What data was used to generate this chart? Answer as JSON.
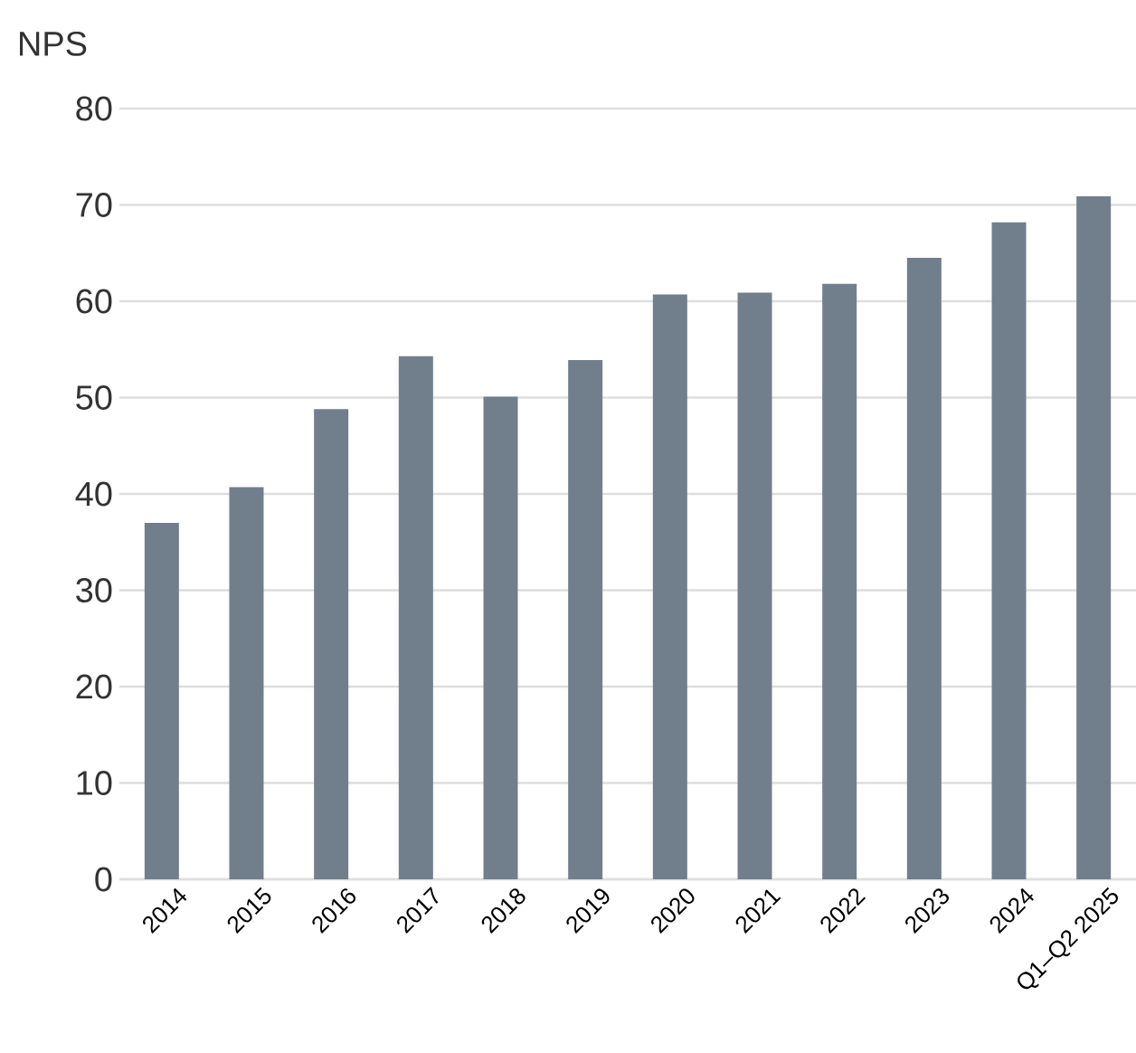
{
  "chart_data": {
    "type": "bar",
    "ylabel": "NPS",
    "categories": [
      "2014",
      "2015",
      "2016",
      "2017",
      "2018",
      "2019",
      "2020",
      "2021",
      "2022",
      "2023",
      "2024",
      "Q1–Q2 2025"
    ],
    "values": [
      37.0,
      40.7,
      48.8,
      54.3,
      50.1,
      53.9,
      60.7,
      60.9,
      61.8,
      64.5,
      68.2,
      70.9
    ],
    "color": "#717f8c",
    "ylim": [
      0,
      80
    ],
    "yticks": [
      0,
      10,
      20,
      30,
      40,
      50,
      60,
      70,
      80
    ],
    "grid": "y"
  }
}
